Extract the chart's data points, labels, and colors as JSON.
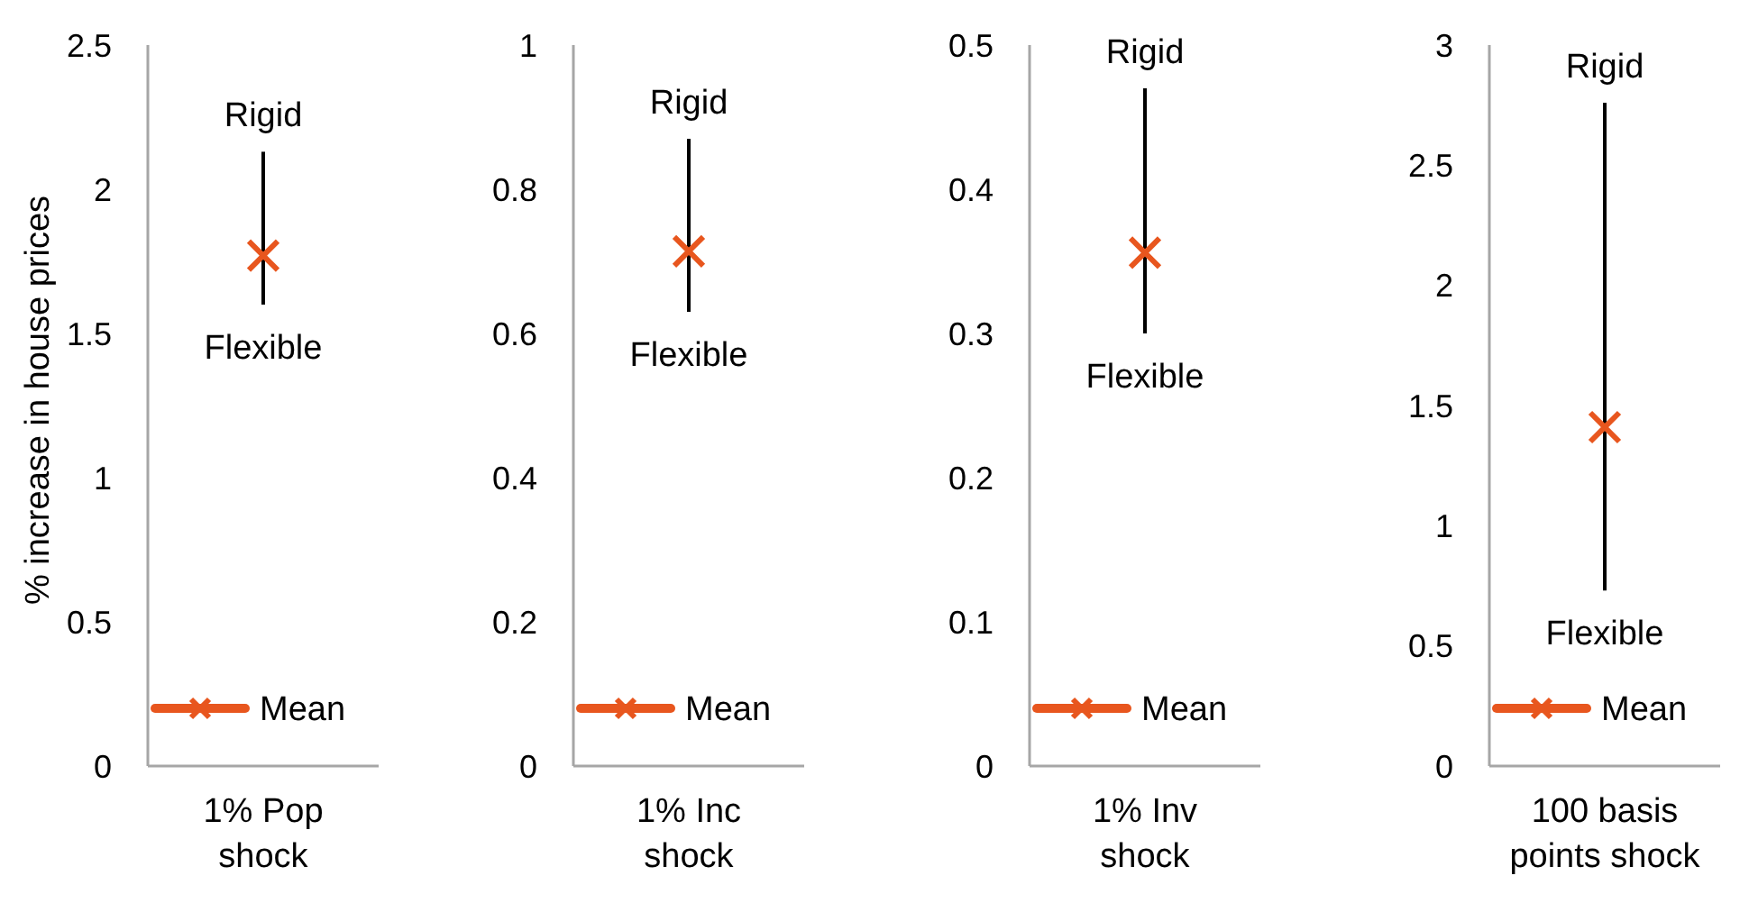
{
  "chart_data": [
    {
      "type": "line",
      "ylabel": "% increase in house prices",
      "categories": [
        "1% Pop shock"
      ],
      "ylim": [
        0,
        2.5
      ],
      "yticks": [
        0,
        0.5,
        1,
        1.5,
        2,
        2.5
      ],
      "legend": "bottom",
      "marker": "cross",
      "series": [
        {
          "name": "Mean",
          "color": "#e8561e",
          "values": [
            1.77
          ],
          "errors": [
            [
              1.6,
              2.13
            ]
          ]
        }
      ],
      "annotations": [
        "Rigid",
        "Flexible"
      ]
    },
    {
      "type": "line",
      "categories": [
        "1% Inc shock"
      ],
      "ylim": [
        0,
        1
      ],
      "yticks": [
        0,
        0.2,
        0.4,
        0.6,
        0.8,
        1
      ],
      "legend": "bottom",
      "marker": "cross",
      "series": [
        {
          "name": "Mean",
          "color": "#e8561e",
          "values": [
            0.714
          ],
          "errors": [
            [
              0.63,
              0.87
            ]
          ]
        }
      ],
      "annotations": [
        "Rigid",
        "Flexible"
      ]
    },
    {
      "type": "line",
      "categories": [
        "1% Inv shock"
      ],
      "ylim": [
        0,
        0.5
      ],
      "yticks": [
        0,
        0.1,
        0.2,
        0.3,
        0.4,
        0.5
      ],
      "legend": "bottom",
      "marker": "cross",
      "series": [
        {
          "name": "Mean",
          "color": "#e8561e",
          "values": [
            0.356
          ],
          "errors": [
            [
              0.3,
              0.47
            ]
          ]
        }
      ],
      "annotations": [
        "Rigid",
        "Flexible"
      ]
    },
    {
      "type": "line",
      "categories": [
        "100 basis points shock"
      ],
      "ylim": [
        0,
        3
      ],
      "yticks": [
        0,
        0.5,
        1,
        1.5,
        2,
        2.5,
        3
      ],
      "legend": "bottom",
      "marker": "cross",
      "series": [
        {
          "name": "Mean",
          "color": "#e8561e",
          "values": [
            1.41
          ],
          "errors": [
            [
              0.73,
              2.76
            ]
          ]
        }
      ],
      "annotations": [
        "Rigid",
        "Flexible"
      ]
    }
  ]
}
